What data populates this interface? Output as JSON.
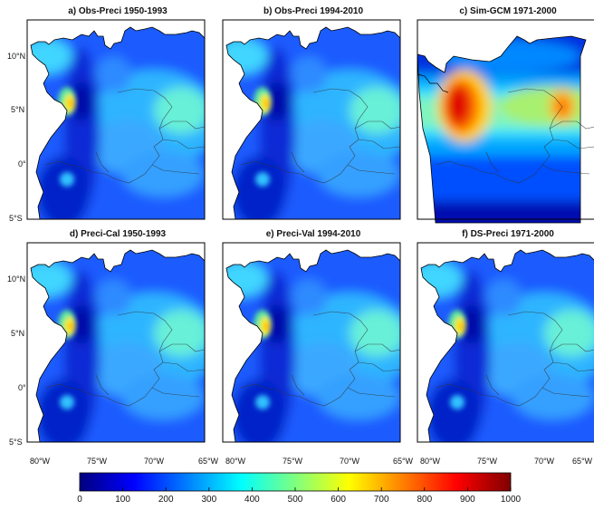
{
  "panels": [
    {
      "title": "a) Obs-Preci 1950-1993",
      "variant": "obs"
    },
    {
      "title": "b) Obs-Preci 1994-2010",
      "variant": "obs"
    },
    {
      "title": "c) Sim-GCM 1971-2000",
      "variant": "gcm"
    },
    {
      "title": "d) Preci-Cal 1950-1993",
      "variant": "obs"
    },
    {
      "title": "e) Preci-Val 1994-2010",
      "variant": "obs"
    },
    {
      "title": "f) DS-Preci 1971-2000",
      "variant": "obs"
    }
  ],
  "lat_ticks": [
    {
      "label": "10°N",
      "value": 10
    },
    {
      "label": "5°N",
      "value": 5
    },
    {
      "label": "0°",
      "value": 0
    },
    {
      "label": "5°S",
      "value": -5
    }
  ],
  "lon_ticks": [
    {
      "label": "80°W",
      "value": -80
    },
    {
      "label": "75°W",
      "value": -75
    },
    {
      "label": "70°W",
      "value": -70
    },
    {
      "label": "65°W",
      "value": -65
    }
  ],
  "colorbar": {
    "min": 0,
    "max": 1000,
    "ticks": [
      "0",
      "100",
      "200",
      "300",
      "400",
      "500",
      "600",
      "700",
      "800",
      "900",
      "1000"
    ],
    "colors": [
      "#00007f",
      "#0000ff",
      "#007fff",
      "#00ffff",
      "#7fff7f",
      "#ffff00",
      "#ff7f00",
      "#ff0000",
      "#7f0000"
    ]
  }
}
